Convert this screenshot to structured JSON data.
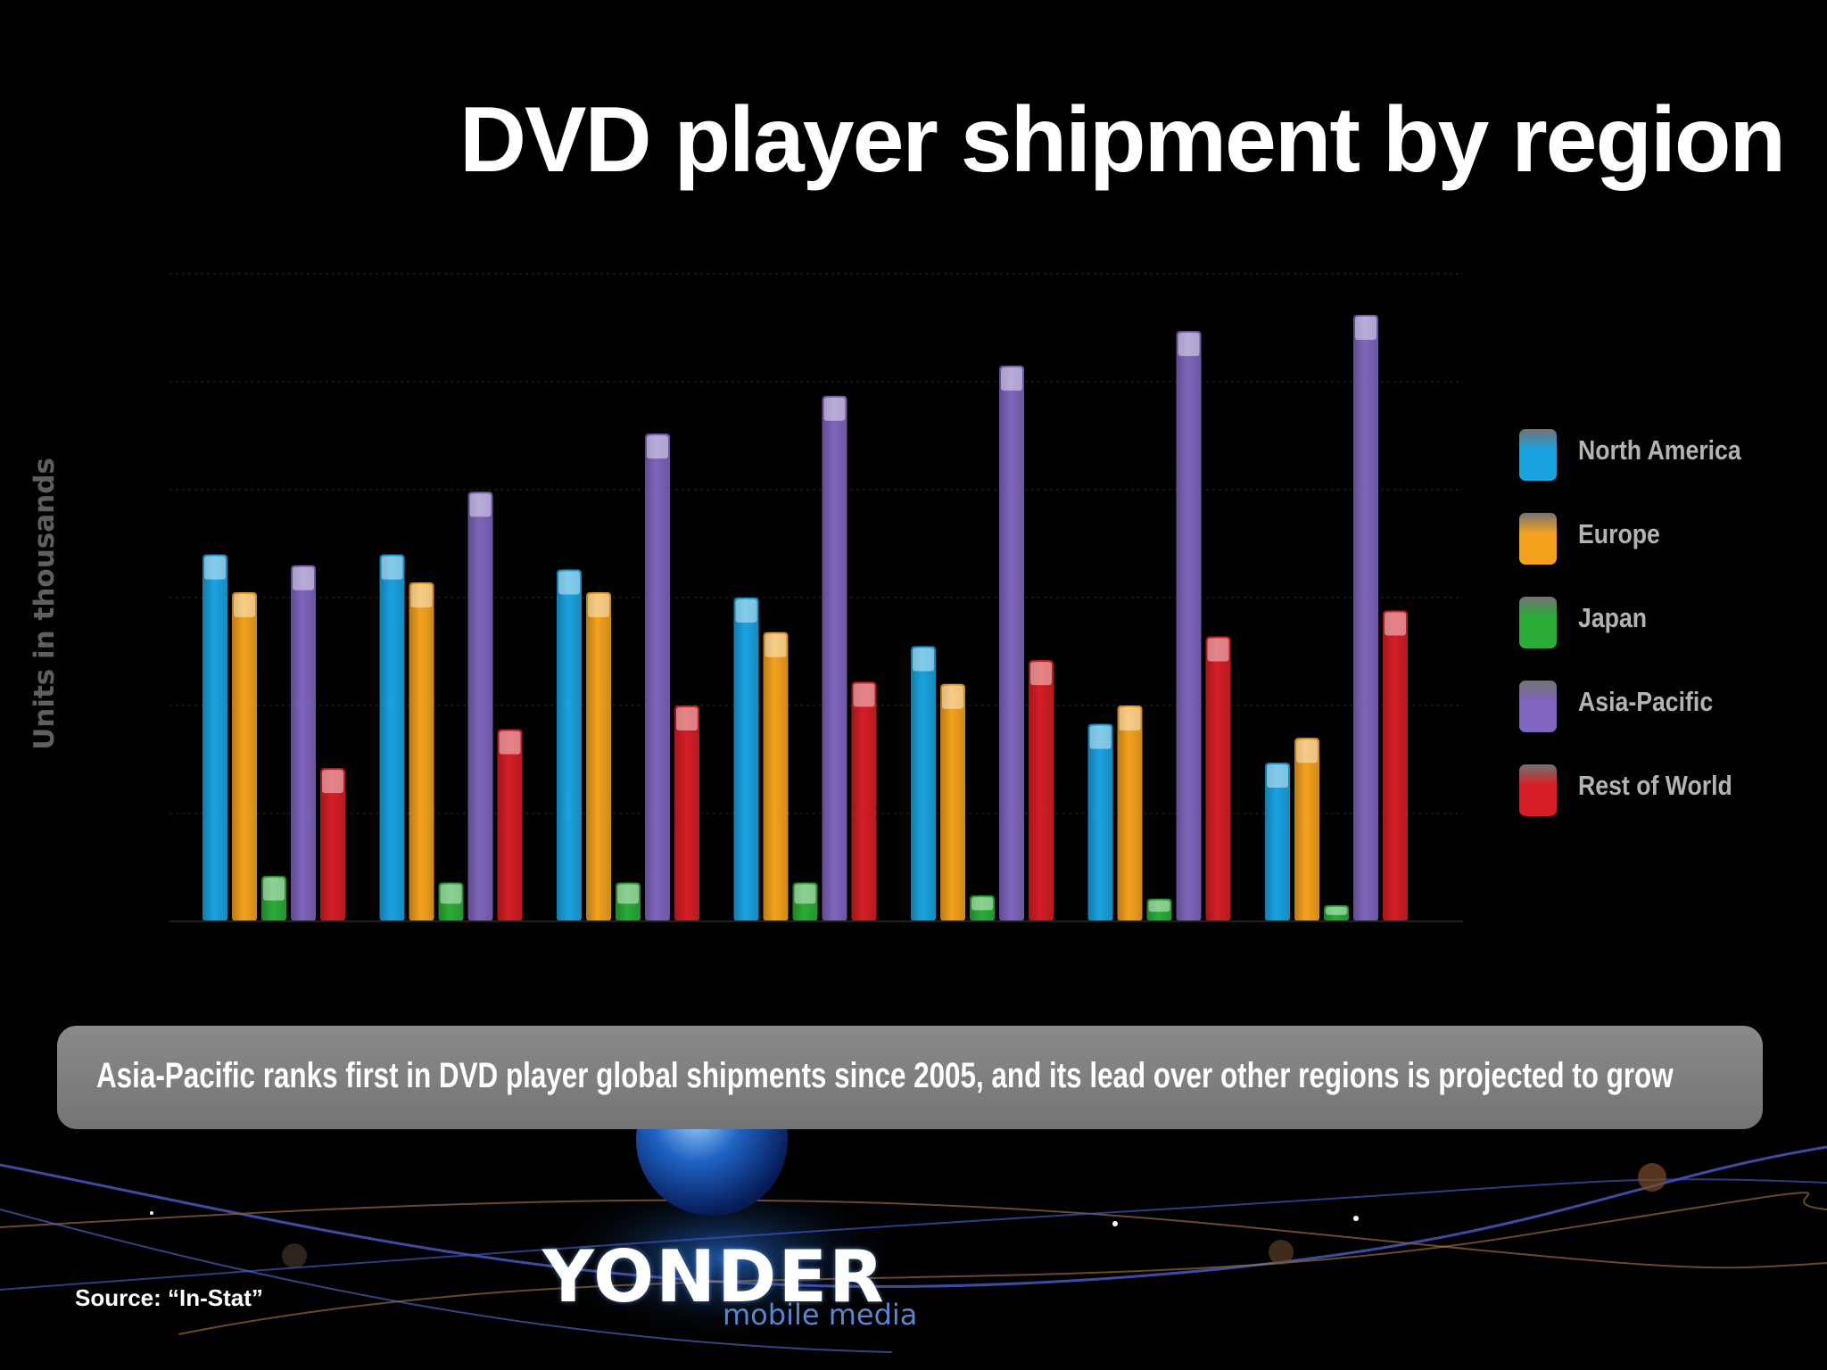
{
  "slide": {
    "title": "DVD player shipment by region",
    "callout": "Asia-Pacific ranks first in DVD player global shipments since 2005, and its lead over other regions is projected to grow",
    "source": "Source: “In-Stat”",
    "logo": {
      "name": "YONDER",
      "tagline": "mobile media"
    }
  },
  "chart_data": {
    "type": "bar",
    "title": "DVD player shipment by region",
    "xlabel": "",
    "ylabel": "Units in thousands",
    "categories": [
      "",
      "",
      "",
      "",
      "",
      "",
      ""
    ],
    "ylim": [
      0,
      6
    ],
    "grid": true,
    "legend_position": "right",
    "series": [
      {
        "name": "North America",
        "color": "#1aa3e0",
        "values": [
          3.4,
          3.4,
          3.26,
          3.0,
          2.55,
          1.83,
          1.47
        ]
      },
      {
        "name": "Europe",
        "color": "#f4a21e",
        "values": [
          3.05,
          3.14,
          3.05,
          2.68,
          2.2,
          2.0,
          1.7
        ]
      },
      {
        "name": "Japan",
        "color": "#2bac38",
        "values": [
          0.42,
          0.36,
          0.36,
          0.36,
          0.24,
          0.21,
          0.15
        ]
      },
      {
        "name": "Asia-Pacific",
        "color": "#7f65bd",
        "values": [
          3.3,
          3.98,
          4.52,
          4.87,
          5.15,
          5.47,
          5.62
        ]
      },
      {
        "name": "Rest of World",
        "color": "#d51e26",
        "values": [
          1.42,
          1.78,
          2.0,
          2.22,
          2.42,
          2.64,
          2.88
        ]
      }
    ]
  }
}
